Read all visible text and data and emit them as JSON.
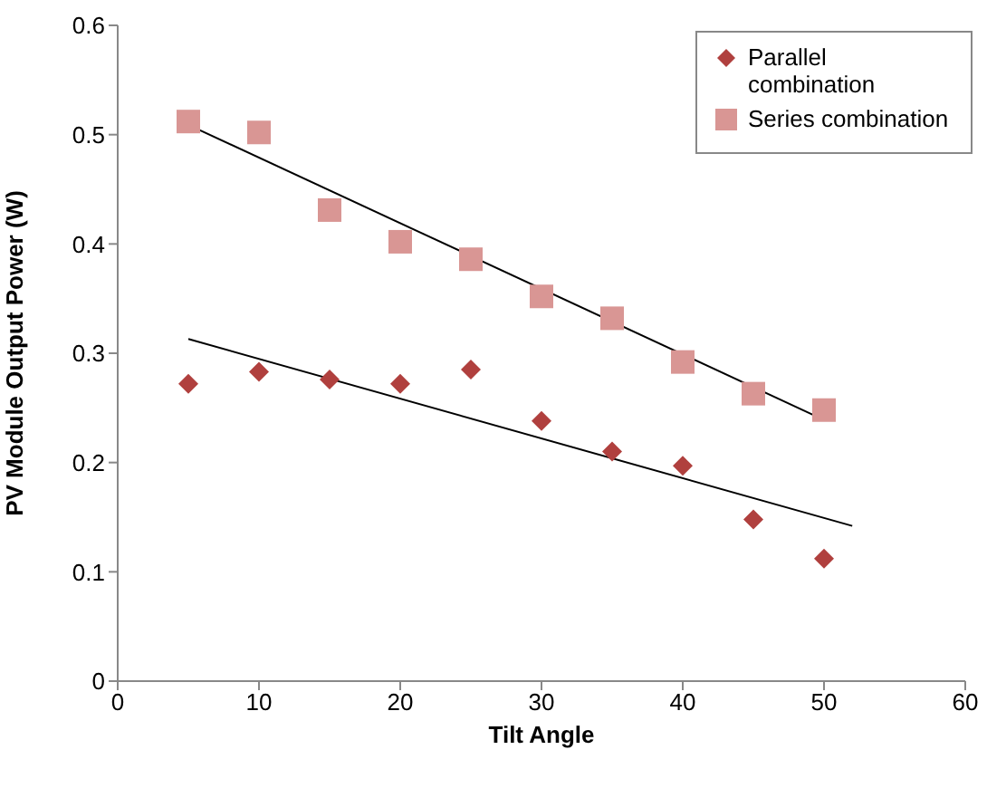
{
  "chart_data": {
    "type": "scatter",
    "xlabel": "Tilt Angle",
    "ylabel": "PV Module Output Power (W)",
    "xlim": [
      0,
      60
    ],
    "xticks": [
      0,
      10,
      20,
      30,
      40,
      50,
      60
    ],
    "ylim": [
      0,
      0.6
    ],
    "yticks": [
      0,
      0.1,
      0.2,
      0.3,
      0.4,
      0.5,
      0.6
    ],
    "grid": false,
    "legend": "top right",
    "series": [
      {
        "name": "Parallel combination",
        "marker": "diamond",
        "color": "#b0403e",
        "x": [
          5,
          10,
          15,
          20,
          25,
          30,
          35,
          40,
          45,
          50
        ],
        "values": [
          0.272,
          0.283,
          0.276,
          0.272,
          0.285,
          0.238,
          0.21,
          0.197,
          0.148,
          0.112
        ]
      },
      {
        "name": "Series combination",
        "marker": "square",
        "color": "#d99694",
        "x": [
          5,
          10,
          15,
          20,
          25,
          30,
          35,
          40,
          45,
          50
        ],
        "values": [
          0.512,
          0.502,
          0.431,
          0.402,
          0.386,
          0.352,
          0.332,
          0.292,
          0.263,
          0.248
        ]
      },
      {
        "type": "line",
        "marker": "none",
        "line_style": "solid",
        "color": "#000000",
        "x": [
          5,
          52
        ],
        "values": [
          0.313,
          0.142
        ]
      },
      {
        "type": "line",
        "marker": "none",
        "line_style": "solid",
        "color": "#000000",
        "x": [
          5,
          50
        ],
        "values": [
          0.509,
          0.239
        ]
      }
    ]
  }
}
